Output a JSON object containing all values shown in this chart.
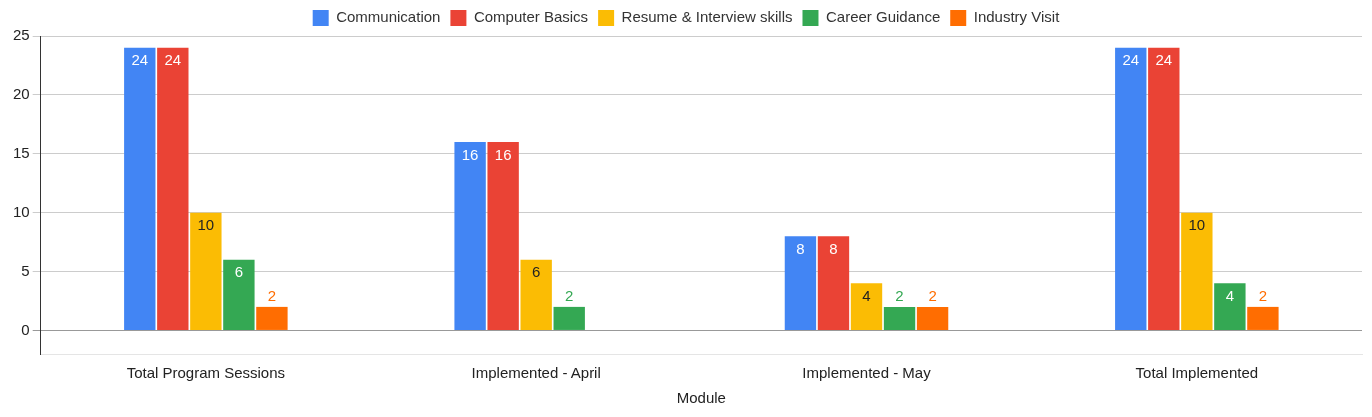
{
  "chart_data": {
    "type": "bar",
    "xlabel": "Module",
    "categories": [
      "Total Program Sessions",
      "Implemented - April",
      "Implemented - May",
      "Total Implemented"
    ],
    "series": [
      {
        "name": "Communication",
        "color": "#4285f4",
        "values": [
          24,
          16,
          8,
          24
        ]
      },
      {
        "name": "Computer Basics",
        "color": "#ea4335",
        "values": [
          24,
          16,
          8,
          24
        ]
      },
      {
        "name": "Resume & Interview skills",
        "color": "#fbbc04",
        "values": [
          10,
          6,
          4,
          10
        ]
      },
      {
        "name": "Career Guidance",
        "color": "#34a853",
        "values": [
          6,
          2,
          2,
          4
        ]
      },
      {
        "name": "Industry Visit",
        "color": "#ff6d01",
        "values": [
          2,
          null,
          2,
          2
        ]
      }
    ],
    "ylim": [
      -2,
      25
    ],
    "yticks": [
      0,
      5,
      10,
      15,
      20,
      25
    ],
    "grid": "y",
    "legend": "top",
    "data_labels": true
  }
}
